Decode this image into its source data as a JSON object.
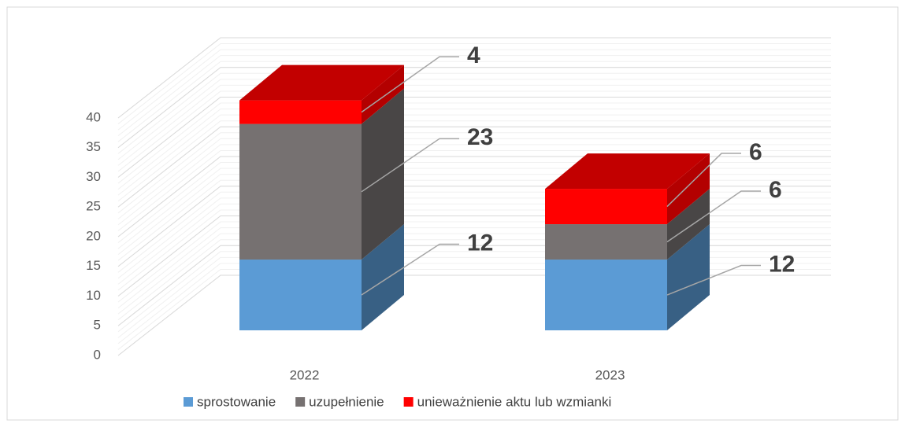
{
  "chart_data": {
    "type": "bar3d_stacked",
    "categories": [
      "2022",
      "2023"
    ],
    "series": [
      {
        "name": "sprostowanie",
        "color": "#5b9bd5",
        "values": [
          12,
          12
        ]
      },
      {
        "name": "uzupełnienie",
        "color": "#767171",
        "values": [
          23,
          6
        ]
      },
      {
        "name": "unieważnienie aktu lub wzmianki",
        "color": "#ff0000",
        "values": [
          4,
          6
        ]
      }
    ],
    "ylim": [
      0,
      40
    ],
    "yticks": [
      0,
      5,
      10,
      15,
      20,
      25,
      30,
      35,
      40
    ],
    "grid": true,
    "legend": "bottom"
  }
}
